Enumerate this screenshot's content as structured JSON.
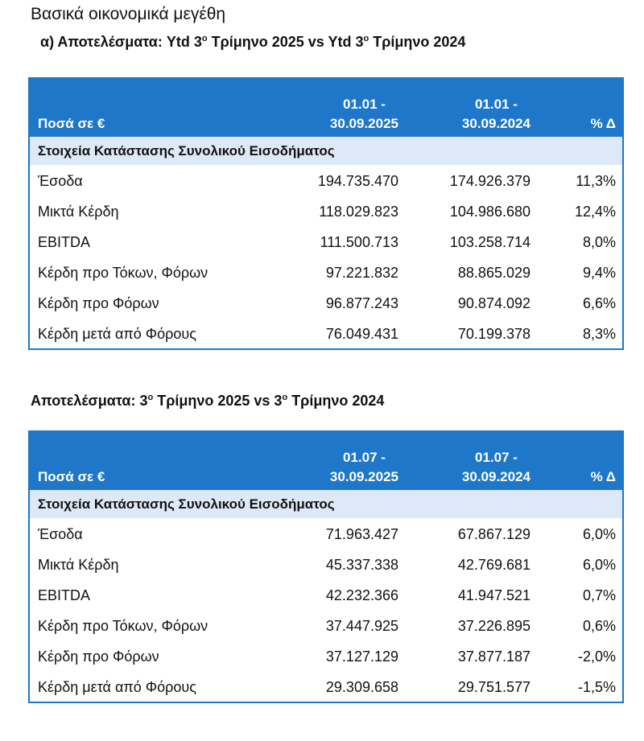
{
  "title": "Βασικά οικονομικά μεγέθη",
  "sections": [
    {
      "heading": [
        "α) Αποτελέσματα: Ytd 3",
        "ο",
        " Τρίμηνο 2025 vs Ytd 3",
        "ο",
        " Τρίμηνο 2024"
      ],
      "table": {
        "header": [
          [
            "Ποσά σε €"
          ],
          [
            "01.01 -",
            "30.09.2025"
          ],
          [
            "01.01 -",
            "30.09.2024"
          ],
          [
            "% Δ"
          ]
        ],
        "group": "Στοιχεία Κατάστασης Συνολικού Εισοδήματος",
        "rows": [
          [
            "Έσοδα",
            "194.735.470",
            "174.926.379",
            "11,3%"
          ],
          [
            "Μικτά Κέρδη",
            "118.029.823",
            "104.986.680",
            "12,4%"
          ],
          [
            "EBITDA",
            "111.500.713",
            "103.258.714",
            "8,0%"
          ],
          [
            "Κέρδη προ Τόκων, Φόρων",
            "97.221.832",
            "88.865.029",
            "9,4%"
          ],
          [
            "Κέρδη προ Φόρων",
            "96.877.243",
            "90.874.092",
            "6,6%"
          ],
          [
            "Κέρδη μετά από Φόρους",
            "76.049.431",
            "70.199.378",
            "8,3%"
          ]
        ]
      }
    },
    {
      "heading": [
        "Αποτελέσματα: 3",
        "ο",
        " Τρίμηνο 2025 vs 3",
        "ο",
        " Τρίμηνο 2024"
      ],
      "table": {
        "header": [
          [
            "Ποσά σε €"
          ],
          [
            "01.07 -",
            "30.09.2025"
          ],
          [
            "01.07 -",
            "30.09.2024"
          ],
          [
            "% Δ"
          ]
        ],
        "group": "Στοιχεία Κατάστασης Συνολικού Εισοδήματος",
        "rows": [
          [
            "Έσοδα",
            "71.963.427",
            "67.867.129",
            "6,0%"
          ],
          [
            "Μικτά Κέρδη",
            "45.337.338",
            "42.769.681",
            "6,0%"
          ],
          [
            "EBITDA",
            "42.232.366",
            "41.947.521",
            "0,7%"
          ],
          [
            "Κέρδη προ Τόκων, Φόρων",
            "37.447.925",
            "37.226.895",
            "0,6%"
          ],
          [
            "Κέρδη προ Φόρων",
            "37.127.129",
            "37.877.187",
            "-2,0%"
          ],
          [
            "Κέρδη μετά από Φόρους",
            "29.309.658",
            "29.751.577",
            "-1,5%"
          ]
        ]
      }
    }
  ]
}
